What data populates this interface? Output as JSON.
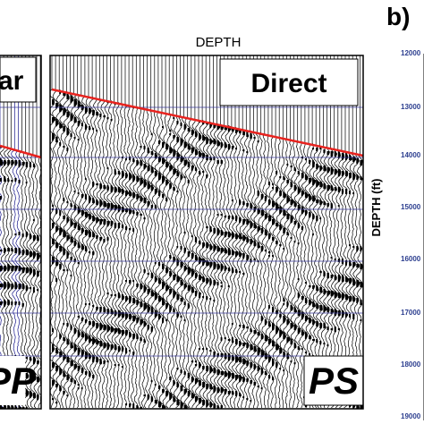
{
  "figure": {
    "header": "DEPTH",
    "panel_label": "b)",
    "left_panel": {
      "title_fragment": "ar",
      "corner_label": "PP"
    },
    "right_panel": {
      "title": "Direct",
      "corner_label": "PS"
    },
    "depth_axis": {
      "label": "DEPTH (ft)",
      "ticks": [
        "12000",
        "13000",
        "14000",
        "15000",
        "16000",
        "17000",
        "18000",
        "19000"
      ]
    }
  },
  "colors": {
    "trace_ink": "#000000",
    "trace_blue": "#1a1a8c",
    "horizon_red": "#e8231f",
    "gridline_blue": "#3a3a9a",
    "tick_blue": "#2c3e8f"
  }
}
